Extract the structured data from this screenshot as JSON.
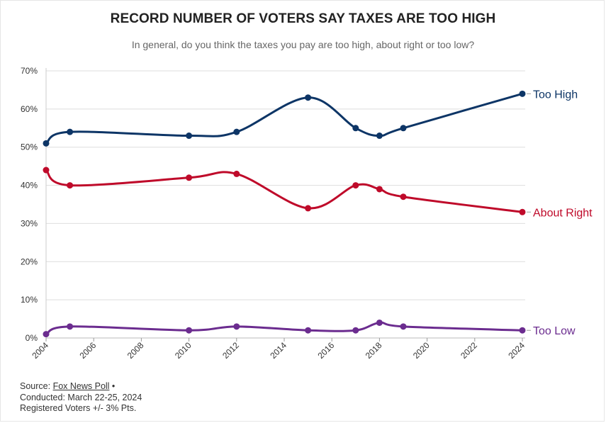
{
  "header": {
    "title": "RECORD NUMBER OF VOTERS SAY TAXES ARE TOO HIGH",
    "subtitle": "In general, do you think the taxes you pay are too high, about right or too low?"
  },
  "footer": {
    "source_prefix": "Source: ",
    "source_link": "Fox News Poll",
    "source_suffix": " •",
    "conducted": "Conducted: March 22-25, 2024",
    "sample": "Registered Voters +/- 3% Pts."
  },
  "chart_data": {
    "type": "line",
    "title": "RECORD NUMBER OF VOTERS SAY TAXES ARE TOO HIGH",
    "subtitle": "In general, do you think the taxes you pay are too high, about right or too low?",
    "xlabel": "",
    "ylabel": "",
    "xlim": [
      2004,
      2024
    ],
    "ylim": [
      0,
      70
    ],
    "x_ticks": [
      "2004",
      "2006",
      "2008",
      "2010",
      "2012",
      "2014",
      "2016",
      "2018",
      "2020",
      "2022",
      "2024"
    ],
    "y_ticks": [
      "0%",
      "10%",
      "20%",
      "30%",
      "40%",
      "50%",
      "60%",
      "70%"
    ],
    "grid": true,
    "legend": "direct labels at right end of lines",
    "series": [
      {
        "name": "Too High",
        "color": "#0d3566",
        "x": [
          2004,
          2005,
          2010,
          2012,
          2015,
          2017,
          2018,
          2019,
          2024
        ],
        "values": [
          51,
          54,
          53,
          54,
          63,
          55,
          53,
          55,
          64
        ]
      },
      {
        "name": "About Right",
        "color": "#bf0a2a",
        "x": [
          2004,
          2005,
          2010,
          2012,
          2015,
          2017,
          2018,
          2019,
          2024
        ],
        "values": [
          44,
          40,
          42,
          43,
          34,
          40,
          39,
          37,
          33
        ]
      },
      {
        "name": "Too Low",
        "color": "#6b2c8f",
        "x": [
          2004,
          2005,
          2010,
          2012,
          2015,
          2017,
          2018,
          2019,
          2024
        ],
        "values": [
          1,
          3,
          2,
          3,
          2,
          2,
          4,
          3,
          2
        ]
      }
    ]
  }
}
